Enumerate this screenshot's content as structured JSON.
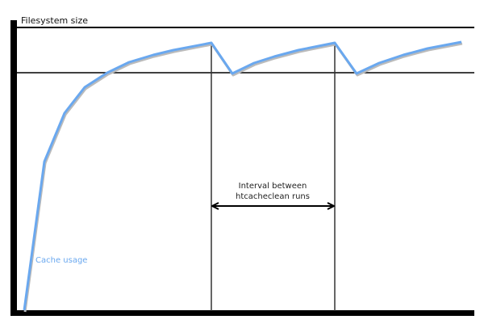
{
  "labels": {
    "y_axis": "Filesystem size",
    "series": "Cache usage",
    "interval_line1": "Interval between",
    "interval_line2": "htcacheclean runs"
  },
  "colors": {
    "curve": "#6aa8ef",
    "series_label": "#6aa8ef",
    "lines": "#000000"
  }
}
